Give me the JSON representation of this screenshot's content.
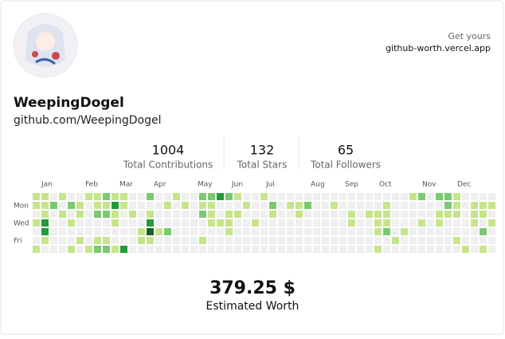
{
  "profile": {
    "name": "WeepingDogel",
    "url": "github.com/WeepingDogel"
  },
  "promo": {
    "line1": "Get yours",
    "line2": "github-worth.vercel.app"
  },
  "stats": [
    {
      "value": "1004",
      "label": "Total Contributions"
    },
    {
      "value": "132",
      "label": "Total Stars"
    },
    {
      "value": "65",
      "label": "Total Followers"
    }
  ],
  "calendar": {
    "months": [
      "Jan",
      "Feb",
      "Mar",
      "Apr",
      "May",
      "Jun",
      "Jul",
      "Aug",
      "Sep",
      "Oct",
      "Nov",
      "Dec"
    ],
    "day_labels": [
      "Mon",
      "Wed",
      "Fri"
    ],
    "level_colors": [
      "#efefef",
      "#c6e48b",
      "#7bc96f",
      "#239a3b",
      "#196127"
    ],
    "rows": [
      [
        1,
        1,
        0,
        1,
        0,
        0,
        1,
        1,
        2,
        1,
        1,
        0,
        0,
        2,
        0,
        0,
        1,
        0,
        0,
        2,
        2,
        3,
        2,
        1,
        0,
        0,
        1,
        0,
        0,
        0,
        0,
        0,
        0,
        0,
        0,
        0,
        0,
        0,
        0,
        0,
        0,
        0,
        0,
        1,
        2,
        0,
        2,
        2,
        1,
        0,
        0,
        0,
        0
      ],
      [
        1,
        1,
        2,
        0,
        2,
        1,
        0,
        1,
        1,
        3,
        1,
        0,
        0,
        0,
        0,
        1,
        0,
        1,
        0,
        1,
        1,
        0,
        0,
        0,
        1,
        0,
        0,
        2,
        0,
        1,
        1,
        2,
        0,
        0,
        1,
        0,
        0,
        0,
        0,
        0,
        1,
        0,
        0,
        0,
        0,
        0,
        0,
        2,
        1,
        0,
        1,
        1,
        1
      ],
      [
        0,
        1,
        0,
        1,
        0,
        1,
        0,
        2,
        2,
        1,
        0,
        1,
        0,
        1,
        0,
        0,
        0,
        0,
        0,
        2,
        1,
        0,
        1,
        1,
        0,
        0,
        0,
        1,
        0,
        0,
        1,
        0,
        0,
        0,
        0,
        0,
        1,
        0,
        1,
        1,
        1,
        0,
        0,
        0,
        0,
        0,
        1,
        1,
        1,
        0,
        1,
        1,
        0
      ],
      [
        1,
        3,
        0,
        0,
        1,
        0,
        0,
        0,
        0,
        1,
        0,
        0,
        0,
        3,
        0,
        0,
        0,
        0,
        0,
        0,
        1,
        1,
        1,
        0,
        0,
        1,
        0,
        0,
        0,
        0,
        0,
        0,
        0,
        0,
        0,
        0,
        1,
        0,
        0,
        1,
        1,
        0,
        0,
        0,
        1,
        0,
        1,
        0,
        0,
        0,
        1,
        0,
        1
      ],
      [
        0,
        3,
        0,
        0,
        0,
        0,
        0,
        0,
        0,
        0,
        0,
        0,
        1,
        4,
        1,
        2,
        0,
        0,
        0,
        0,
        0,
        0,
        1,
        0,
        0,
        0,
        0,
        0,
        0,
        0,
        0,
        0,
        0,
        0,
        0,
        0,
        0,
        0,
        0,
        1,
        2,
        0,
        1,
        0,
        0,
        0,
        0,
        0,
        0,
        0,
        0,
        2,
        0
      ],
      [
        0,
        1,
        0,
        0,
        0,
        1,
        0,
        1,
        1,
        0,
        0,
        0,
        1,
        1,
        0,
        0,
        0,
        0,
        0,
        1,
        0,
        0,
        0,
        0,
        0,
        0,
        0,
        0,
        0,
        0,
        0,
        0,
        0,
        0,
        0,
        0,
        0,
        0,
        0,
        0,
        0,
        1,
        0,
        0,
        0,
        0,
        0,
        0,
        1,
        0,
        0,
        0,
        0
      ],
      [
        1,
        0,
        0,
        0,
        1,
        0,
        1,
        2,
        2,
        1,
        3,
        0,
        0,
        0,
        0,
        0,
        0,
        0,
        0,
        0,
        0,
        0,
        0,
        0,
        0,
        0,
        0,
        0,
        0,
        0,
        0,
        0,
        0,
        0,
        0,
        0,
        0,
        0,
        0,
        1,
        0,
        0,
        0,
        0,
        0,
        0,
        0,
        0,
        0,
        1,
        0,
        1,
        0
      ]
    ]
  },
  "worth": {
    "value": "379.25 $",
    "label": "Estimated Worth"
  }
}
